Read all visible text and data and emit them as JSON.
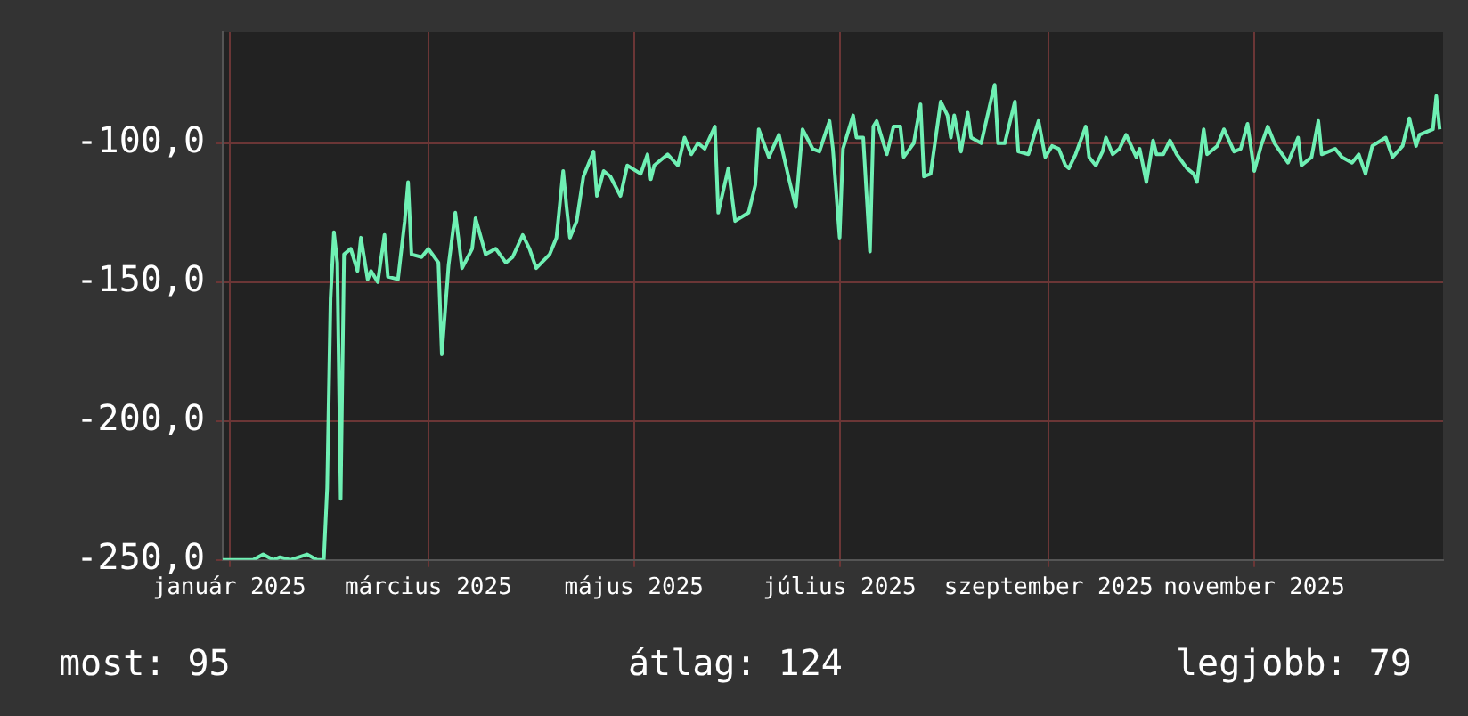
{
  "chart_data": {
    "type": "line",
    "color": "#6ff0b4",
    "grid": true,
    "legend": false,
    "marker": "none",
    "line_style": "solid",
    "xlim": [
      "2024-12-30",
      "2025-12-27"
    ],
    "xticks": [
      {
        "value": "2025-01-01",
        "label": "január 2025"
      },
      {
        "value": "2025-03-01",
        "label": "március 2025"
      },
      {
        "value": "2025-05-01",
        "label": "május 2025"
      },
      {
        "value": "2025-07-01",
        "label": "július 2025"
      },
      {
        "value": "2025-09-01",
        "label": "szeptember 2025"
      },
      {
        "value": "2025-11-01",
        "label": "november 2025"
      }
    ],
    "ylim": [
      -250,
      -60
    ],
    "yticks": [
      {
        "value": -250,
        "label": "-250,0"
      },
      {
        "value": -200,
        "label": "-200,0"
      },
      {
        "value": -150,
        "label": "-150,0"
      },
      {
        "value": -100,
        "label": "-100,0"
      }
    ],
    "annotations": [
      "most: 95",
      "átlag: 124",
      "legjobb: 79"
    ],
    "x": [
      "2024-12-30",
      "2025-01-08",
      "2025-01-11",
      "2025-01-14",
      "2025-01-16",
      "2025-01-19",
      "2025-01-24",
      "2025-01-27",
      "2025-01-29",
      "2025-01-30",
      "2025-01-31",
      "2025-02-01",
      "2025-02-02",
      "2025-02-03",
      "2025-02-04",
      "2025-02-06",
      "2025-02-08",
      "2025-02-09",
      "2025-02-11",
      "2025-02-12",
      "2025-02-14",
      "2025-02-16",
      "2025-02-17",
      "2025-02-20",
      "2025-02-22",
      "2025-02-23",
      "2025-02-24",
      "2025-02-27",
      "2025-03-01",
      "2025-03-04",
      "2025-03-05",
      "2025-03-07",
      "2025-03-09",
      "2025-03-11",
      "2025-03-14",
      "2025-03-15",
      "2025-03-18",
      "2025-03-21",
      "2025-03-24",
      "2025-03-26",
      "2025-03-29",
      "2025-03-31",
      "2025-04-02",
      "2025-04-06",
      "2025-04-08",
      "2025-04-10",
      "2025-04-11",
      "2025-04-12",
      "2025-04-14",
      "2025-04-16",
      "2025-04-19",
      "2025-04-20",
      "2025-04-22",
      "2025-04-24",
      "2025-04-27",
      "2025-04-29",
      "2025-05-03",
      "2025-05-05",
      "2025-05-06",
      "2025-05-07",
      "2025-05-11",
      "2025-05-14",
      "2025-05-16",
      "2025-05-18",
      "2025-05-20",
      "2025-05-22",
      "2025-05-25",
      "2025-05-26",
      "2025-05-29",
      "2025-05-31",
      "2025-06-04",
      "2025-06-06",
      "2025-06-07",
      "2025-06-10",
      "2025-06-13",
      "2025-06-16",
      "2025-06-18",
      "2025-06-20",
      "2025-06-23",
      "2025-06-25",
      "2025-06-28",
      "2025-06-29",
      "2025-07-01",
      "2025-07-02",
      "2025-07-05",
      "2025-07-06",
      "2025-07-08",
      "2025-07-10",
      "2025-07-11",
      "2025-07-12",
      "2025-07-15",
      "2025-07-17",
      "2025-07-19",
      "2025-07-20",
      "2025-07-23",
      "2025-07-25",
      "2025-07-26",
      "2025-07-28",
      "2025-07-31",
      "2025-08-02",
      "2025-08-03",
      "2025-08-04",
      "2025-08-06",
      "2025-08-08",
      "2025-08-09",
      "2025-08-12",
      "2025-08-15",
      "2025-08-16",
      "2025-08-17",
      "2025-08-19",
      "2025-08-22",
      "2025-08-23",
      "2025-08-26",
      "2025-08-29",
      "2025-08-31",
      "2025-09-02",
      "2025-09-04",
      "2025-09-06",
      "2025-09-07",
      "2025-09-09",
      "2025-09-12",
      "2025-09-13",
      "2025-09-15",
      "2025-09-17",
      "2025-09-18",
      "2025-09-20",
      "2025-09-22",
      "2025-09-24",
      "2025-09-27",
      "2025-09-28",
      "2025-09-30",
      "2025-10-02",
      "2025-10-03",
      "2025-10-05",
      "2025-10-07",
      "2025-10-09",
      "2025-10-12",
      "2025-10-14",
      "2025-10-15",
      "2025-10-17",
      "2025-10-18",
      "2025-10-21",
      "2025-10-23",
      "2025-10-26",
      "2025-10-28",
      "2025-10-30",
      "2025-11-01",
      "2025-11-03",
      "2025-11-05",
      "2025-11-07",
      "2025-11-11",
      "2025-11-14",
      "2025-11-15",
      "2025-11-18",
      "2025-11-20",
      "2025-11-21",
      "2025-11-25",
      "2025-11-27",
      "2025-11-30",
      "2025-12-02",
      "2025-12-04",
      "2025-12-06",
      "2025-12-10",
      "2025-12-12",
      "2025-12-15",
      "2025-12-17",
      "2025-12-19",
      "2025-12-20",
      "2025-12-24",
      "2025-12-25",
      "2025-12-26"
    ],
    "values": [
      -250,
      -250,
      -248,
      -250,
      -249,
      -250,
      -248,
      -250,
      -250,
      -224,
      -156,
      -132,
      -143,
      -228,
      -140,
      -138,
      -146,
      -134,
      -149,
      -146,
      -150,
      -133,
      -148,
      -149,
      -128,
      -114,
      -140,
      -141,
      -138,
      -143,
      -176,
      -144,
      -125,
      -145,
      -138,
      -127,
      -140,
      -138,
      -143,
      -141,
      -133,
      -138,
      -145,
      -140,
      -134,
      -110,
      -123,
      -134,
      -128,
      -112,
      -103,
      -119,
      -110,
      -112,
      -119,
      -108,
      -111,
      -104,
      -113,
      -108,
      -104,
      -108,
      -98,
      -104,
      -100,
      -102,
      -94,
      -125,
      -109,
      -128,
      -125,
      -115,
      -95,
      -105,
      -97,
      -113,
      -123,
      -95,
      -102,
      -103,
      -92,
      -102,
      -134,
      -102,
      -90,
      -98,
      -98,
      -139,
      -94,
      -92,
      -104,
      -94,
      -94,
      -105,
      -100,
      -86,
      -112,
      -111,
      -85,
      -90,
      -98,
      -90,
      -103,
      -89,
      -98,
      -100,
      -84,
      -79,
      -100,
      -100,
      -85,
      -103,
      -104,
      -92,
      -105,
      -101,
      -102,
      -108,
      -109,
      -104,
      -94,
      -105,
      -108,
      -103,
      -98,
      -104,
      -102,
      -97,
      -105,
      -102,
      -114,
      -99,
      -104,
      -104,
      -99,
      -104,
      -109,
      -111,
      -114,
      -95,
      -104,
      -101,
      -95,
      -103,
      -102,
      -93,
      -110,
      -101,
      -94,
      -100,
      -107,
      -98,
      -108,
      -105,
      -92,
      -104,
      -102,
      -105,
      -107,
      -104,
      -111,
      -101,
      -98,
      -105,
      -101,
      -91,
      -101,
      -97,
      -95,
      -83,
      -95
    ]
  }
}
